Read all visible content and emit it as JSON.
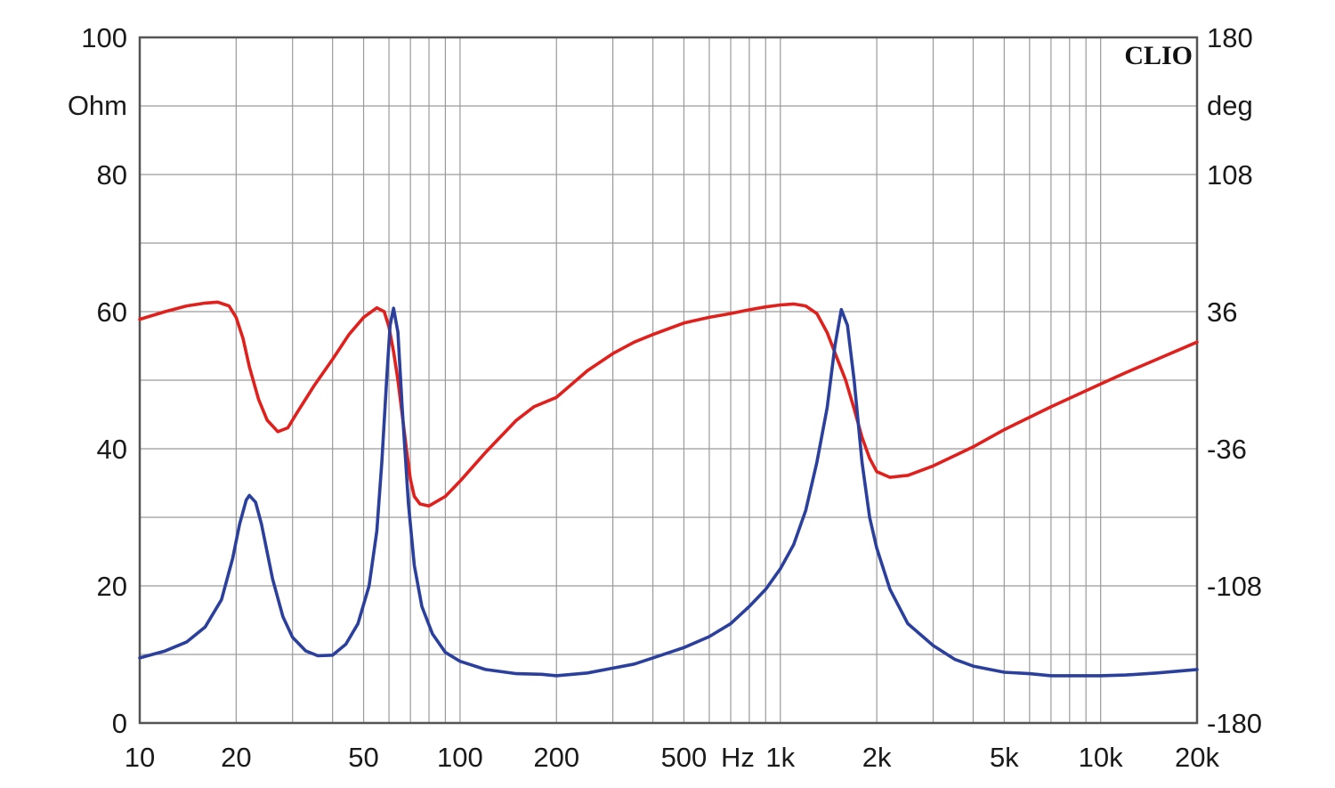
{
  "chart_data": {
    "type": "line",
    "title": "",
    "watermark": "CLIO",
    "x_scale": "log",
    "xlim": [
      10,
      20000
    ],
    "x_ticks": [
      {
        "value": 10,
        "label": "10"
      },
      {
        "value": 20,
        "label": "20"
      },
      {
        "value": 50,
        "label": "50"
      },
      {
        "value": 100,
        "label": "100"
      },
      {
        "value": 200,
        "label": "200"
      },
      {
        "value": 500,
        "label": "500"
      },
      {
        "value": 1000,
        "label": "1k"
      },
      {
        "value": 2000,
        "label": "2k"
      },
      {
        "value": 5000,
        "label": "5k"
      },
      {
        "value": 10000,
        "label": "10k"
      },
      {
        "value": 20000,
        "label": "20k"
      }
    ],
    "x_unit_label": "Hz",
    "y_left": {
      "unit": "Ohm",
      "ylim": [
        0,
        100
      ],
      "ticks": [
        {
          "value": 0,
          "label": "0"
        },
        {
          "value": 20,
          "label": "20"
        },
        {
          "value": 40,
          "label": "40"
        },
        {
          "value": 60,
          "label": "60"
        },
        {
          "value": 80,
          "label": "80"
        },
        {
          "value": 100,
          "label": "100"
        }
      ]
    },
    "y_right": {
      "unit": "deg",
      "ylim": [
        -180,
        180
      ],
      "ticks": [
        {
          "value": -180,
          "label": "-180"
        },
        {
          "value": -108,
          "label": "-108"
        },
        {
          "value": -36,
          "label": "-36"
        },
        {
          "value": 36,
          "label": "36"
        },
        {
          "value": 108,
          "label": "108"
        },
        {
          "value": 180,
          "label": "180"
        }
      ]
    },
    "grid": true,
    "series": [
      {
        "axis": "left",
        "color": "#2b3f9c",
        "points": [
          [
            10,
            9.5
          ],
          [
            12,
            10.5
          ],
          [
            14,
            11.8
          ],
          [
            16,
            14
          ],
          [
            18,
            18
          ],
          [
            19.5,
            24
          ],
          [
            20.5,
            29
          ],
          [
            21.5,
            32.5
          ],
          [
            22,
            33.2
          ],
          [
            23,
            32.2
          ],
          [
            24,
            29
          ],
          [
            26,
            21
          ],
          [
            28,
            15.5
          ],
          [
            30,
            12.5
          ],
          [
            33,
            10.5
          ],
          [
            36,
            9.8
          ],
          [
            40,
            9.9
          ],
          [
            44,
            11.5
          ],
          [
            48,
            14.5
          ],
          [
            52,
            20
          ],
          [
            55,
            28
          ],
          [
            57,
            38
          ],
          [
            59,
            50
          ],
          [
            60.5,
            58
          ],
          [
            62,
            60.5
          ],
          [
            64,
            57
          ],
          [
            66,
            46
          ],
          [
            69,
            32
          ],
          [
            72,
            23
          ],
          [
            76,
            17
          ],
          [
            82,
            13
          ],
          [
            90,
            10.3
          ],
          [
            100,
            9
          ],
          [
            120,
            7.8
          ],
          [
            150,
            7.2
          ],
          [
            180,
            7.1
          ],
          [
            200,
            6.9
          ],
          [
            250,
            7.3
          ],
          [
            300,
            8
          ],
          [
            350,
            8.6
          ],
          [
            400,
            9.5
          ],
          [
            500,
            11
          ],
          [
            600,
            12.6
          ],
          [
            700,
            14.5
          ],
          [
            800,
            17
          ],
          [
            900,
            19.5
          ],
          [
            1000,
            22.5
          ],
          [
            1100,
            26
          ],
          [
            1200,
            31
          ],
          [
            1300,
            38
          ],
          [
            1400,
            46
          ],
          [
            1480,
            55
          ],
          [
            1550,
            60.3
          ],
          [
            1620,
            58
          ],
          [
            1700,
            50
          ],
          [
            1800,
            38
          ],
          [
            1900,
            30
          ],
          [
            2000,
            25.5
          ],
          [
            2200,
            19.5
          ],
          [
            2500,
            14.5
          ],
          [
            3000,
            11.3
          ],
          [
            3500,
            9.3
          ],
          [
            4000,
            8.3
          ],
          [
            5000,
            7.4
          ],
          [
            6000,
            7.2
          ],
          [
            7000,
            6.9
          ],
          [
            8000,
            6.9
          ],
          [
            10000,
            6.9
          ],
          [
            12000,
            7
          ],
          [
            15000,
            7.3
          ],
          [
            20000,
            7.8
          ]
        ]
      },
      {
        "axis": "right",
        "color": "#e0201c",
        "points": [
          [
            10,
            32
          ],
          [
            12,
            36
          ],
          [
            14,
            39
          ],
          [
            16,
            40.5
          ],
          [
            17.5,
            41
          ],
          [
            19,
            39
          ],
          [
            20,
            33
          ],
          [
            21,
            22
          ],
          [
            22,
            7
          ],
          [
            23.5,
            -10
          ],
          [
            25,
            -21
          ],
          [
            27,
            -27
          ],
          [
            29,
            -25
          ],
          [
            31,
            -17
          ],
          [
            35,
            -3
          ],
          [
            40,
            11
          ],
          [
            45,
            24
          ],
          [
            50,
            33
          ],
          [
            55,
            38
          ],
          [
            58,
            36
          ],
          [
            60,
            28
          ],
          [
            62,
            15
          ],
          [
            64,
            0
          ],
          [
            66,
            -18
          ],
          [
            68,
            -36
          ],
          [
            70,
            -52
          ],
          [
            72,
            -61
          ],
          [
            75,
            -65
          ],
          [
            80,
            -66
          ],
          [
            90,
            -61
          ],
          [
            100,
            -53
          ],
          [
            120,
            -38
          ],
          [
            150,
            -21
          ],
          [
            170,
            -14
          ],
          [
            200,
            -9
          ],
          [
            250,
            5
          ],
          [
            300,
            14
          ],
          [
            350,
            20
          ],
          [
            400,
            24
          ],
          [
            500,
            30
          ],
          [
            600,
            33
          ],
          [
            700,
            35
          ],
          [
            800,
            37
          ],
          [
            900,
            38.5
          ],
          [
            1000,
            39.5
          ],
          [
            1100,
            40
          ],
          [
            1200,
            39
          ],
          [
            1300,
            35
          ],
          [
            1400,
            25
          ],
          [
            1500,
            12
          ],
          [
            1600,
            0
          ],
          [
            1700,
            -15
          ],
          [
            1800,
            -30
          ],
          [
            1900,
            -41
          ],
          [
            2000,
            -48
          ],
          [
            2200,
            -51
          ],
          [
            2500,
            -50
          ],
          [
            3000,
            -45
          ],
          [
            4000,
            -35
          ],
          [
            5000,
            -26
          ],
          [
            7000,
            -14
          ],
          [
            10000,
            -2
          ],
          [
            12000,
            4
          ],
          [
            15000,
            11
          ],
          [
            20000,
            20
          ]
        ]
      }
    ]
  }
}
